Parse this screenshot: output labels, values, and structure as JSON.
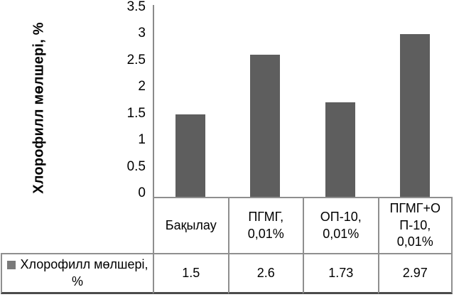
{
  "chart_data": {
    "type": "bar",
    "title": "",
    "categories": [
      "Бақылау",
      "ПГМГ, 0,01%",
      "ОП-10, 0,01%",
      "ПГМГ+ОП-10, 0,01%"
    ],
    "series": [
      {
        "name": "Хлорофилл мөлшері, %",
        "values": [
          1.5,
          2.6,
          1.73,
          2.97
        ],
        "color": "#5e5e5e"
      }
    ],
    "xlabel": "",
    "ylabel": "Хлорофилл мөлшері, %",
    "ylim": [
      0,
      3.5
    ],
    "yticks": [
      3.5,
      3,
      2.5,
      2,
      1.5,
      1,
      0.5,
      0
    ],
    "ytick_labels": [
      "3.5",
      "3",
      "2.5",
      "2",
      "1.5",
      "1",
      "0.5",
      "0"
    ],
    "grid": false,
    "legend_position": "data-table-left"
  },
  "axis": {
    "line_color": "#8a8a8a"
  },
  "data_table": {
    "category_cells": [
      "Бақылау",
      "ПГМГ,\n0,01%",
      "ОП-10,\n0,01%",
      "ПГМГ+О\nП-10,\n0,01%"
    ],
    "value_cells": [
      "1.5",
      "2.6",
      "1.73",
      "2.97"
    ],
    "legend": {
      "label": "Хлорофилл мөлшері,\n%",
      "marker_color": "#7a7a7a"
    },
    "border_color": "#8f8f8f",
    "outer_bottom_color": "#4b4b4b"
  }
}
